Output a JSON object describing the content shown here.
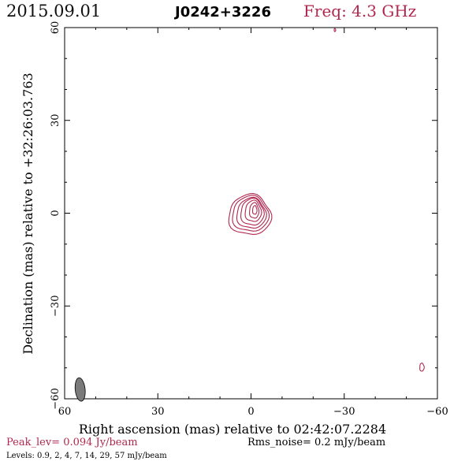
{
  "header": {
    "date": "2015.09.01",
    "source": "J0242+3226",
    "freq": "Freq: 4.3 GHz"
  },
  "footer": {
    "peak": "Peak_lev=  0.094 Jy/beam",
    "rms": "Rms_noise=  0.2 mJy/beam",
    "levels": "Levels: 0.9,   2,   4,   7,  14,  29,  57 mJy/beam"
  },
  "colors": {
    "contour": "#b0284f",
    "beam_fill": "#7a7a7a",
    "axis": "#000000"
  },
  "chart_data": {
    "type": "contour",
    "title": "J0242+3226",
    "xlabel": "Right ascension (mas) relative to 02:42:07.2284",
    "ylabel": "Declination (mas) relative to +32:26:03.763",
    "xlim": [
      60,
      -60
    ],
    "ylim": [
      -60,
      60
    ],
    "x_ticks": [
      60,
      30,
      0,
      -30,
      -60
    ],
    "y_ticks": [
      60,
      30,
      0,
      -30,
      -60
    ],
    "x_tick_labels": [
      "60",
      "30",
      "0",
      "−30",
      "−60"
    ],
    "y_tick_labels": [
      "60",
      "30",
      "0",
      "−30",
      "−60"
    ],
    "levels_mJy_per_beam": [
      0.9,
      2,
      4,
      7,
      14,
      29,
      57
    ],
    "peak_Jy_per_beam": 0.094,
    "rms_noise_mJy_per_beam": 0.2,
    "components": [
      {
        "ra": -0.5,
        "dec": -0.5,
        "contours": [
          {
            "level": 0.9,
            "rx": 6.8,
            "ry": 6.5,
            "cx": 0.4,
            "cy": -0.6
          },
          {
            "level": 2,
            "rx": 5.8,
            "ry": 5.7,
            "cx": 0.2,
            "cy": -0.3
          },
          {
            "level": 4,
            "rx": 4.7,
            "ry": 4.9,
            "cx": -0.1,
            "cy": -0.1
          },
          {
            "level": 7,
            "rx": 3.7,
            "ry": 4.3,
            "cx": -0.4,
            "cy": 0.3
          },
          {
            "level": 14,
            "rx": 2.6,
            "ry": 3.4,
            "cx": -0.7,
            "cy": 0.6
          },
          {
            "level": 29,
            "rx": 1.5,
            "ry": 2.5,
            "cx": -1.0,
            "cy": 0.8
          },
          {
            "level": 57,
            "rx": 0.7,
            "ry": 1.4,
            "cx": -1.2,
            "cy": 1.0
          }
        ]
      },
      {
        "ra": -55,
        "dec": -50,
        "contours": [
          {
            "level": 0.9,
            "rx": 0.7,
            "ry": 1.3,
            "cx": -55,
            "cy": -49.8
          }
        ]
      },
      {
        "ra": -27,
        "dec": 59.2,
        "contours": [
          {
            "level": 0.9,
            "rx": 0.25,
            "ry": 0.5,
            "cx": -27,
            "cy": 59.2
          }
        ]
      }
    ],
    "beam": {
      "ra": 55,
      "dec": -57,
      "major": 3.8,
      "minor": 1.6,
      "pa_deg": -6
    }
  }
}
